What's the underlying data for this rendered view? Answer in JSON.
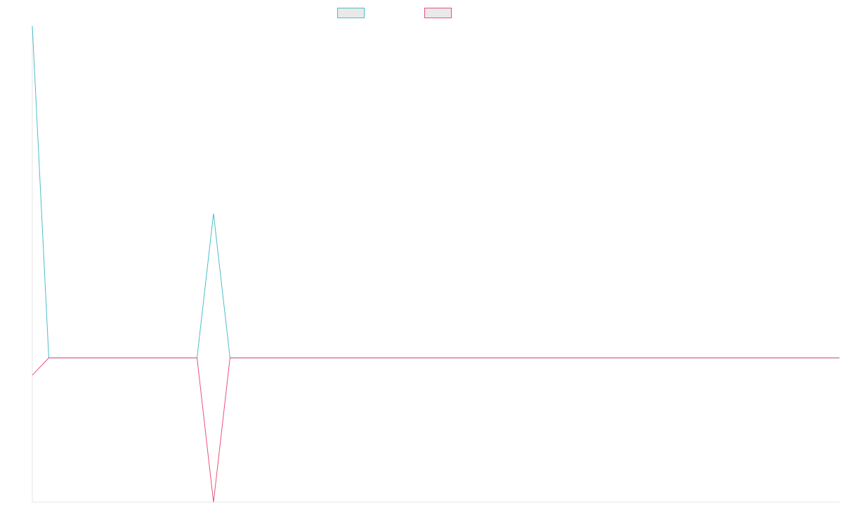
{
  "chart_data": {
    "type": "line",
    "title": "",
    "xlabel": "",
    "ylabel": "",
    "x_points": 50,
    "ylim": [
      -1,
      2.3
    ],
    "grid": false,
    "legend_position": "top-center",
    "series": [
      {
        "color": "#4bbec9",
        "values": [
          2.3,
          0,
          0,
          0,
          0,
          0,
          0,
          0,
          0,
          0,
          0,
          1,
          0,
          0,
          0,
          0,
          0,
          0,
          0,
          0,
          0,
          0,
          0,
          0,
          0,
          0,
          0,
          0,
          0,
          0,
          0,
          0,
          0,
          0,
          0,
          0,
          0,
          0,
          0,
          0,
          0,
          0,
          0,
          0,
          0,
          0,
          0,
          0,
          0,
          0
        ]
      },
      {
        "color": "#e8527a",
        "values": [
          -0.12,
          0,
          0,
          0,
          0,
          0,
          0,
          0,
          0,
          0,
          0,
          -1,
          0,
          0,
          0,
          0,
          0,
          0,
          0,
          0,
          0,
          0,
          0,
          0,
          0,
          0,
          0,
          0,
          0,
          0,
          0,
          0,
          0,
          0,
          0,
          0,
          0,
          0,
          0,
          0,
          0,
          0,
          0,
          0,
          0,
          0,
          0,
          0,
          0,
          0
        ]
      }
    ]
  }
}
